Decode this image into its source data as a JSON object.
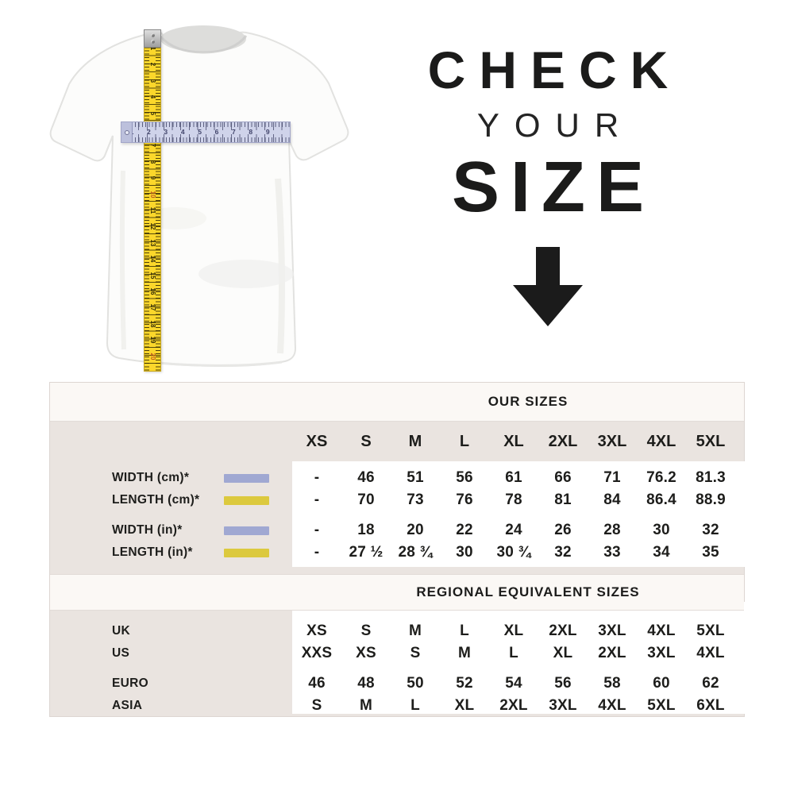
{
  "hero": {
    "line1": "CHECK",
    "line2": "YOUR",
    "line3": "SIZE",
    "arrow_icon": "down-arrow"
  },
  "shirt": {
    "image": "white t-shirt front view",
    "vertical_ruler": {
      "meaning": "length measurement",
      "color": "#fbd72b",
      "numbers": [
        1,
        2,
        3,
        4,
        5,
        6,
        7,
        8,
        9,
        10,
        11,
        12,
        13,
        14,
        15,
        16,
        17,
        18,
        19,
        20
      ]
    },
    "horizontal_ruler": {
      "meaning": "width measurement",
      "color": "#cfd3ea",
      "numbers": [
        1,
        2,
        3,
        4,
        5,
        6,
        7,
        8,
        9
      ]
    }
  },
  "colors": {
    "table_background": "#eae4e0",
    "band_background": "#fbf8f5",
    "panel_background": "#ffffff",
    "text": "#1d1d1b",
    "width_swatch": "#a0a8d2",
    "length_swatch": "#dcc93e"
  },
  "chart_data": [
    {
      "type": "table",
      "title": "OUR SIZES",
      "columns": [
        "XS",
        "S",
        "M",
        "L",
        "XL",
        "2XL",
        "3XL",
        "4XL",
        "5XL"
      ],
      "rows": [
        {
          "label": "WIDTH (cm)*",
          "swatch": "#a0a8d2",
          "values": [
            "-",
            "46",
            "51",
            "56",
            "61",
            "66",
            "71",
            "76.2",
            "81.3"
          ],
          "bold": [
            6,
            7,
            8
          ]
        },
        {
          "label": "LENGTH (cm)*",
          "swatch": "#dcc93e",
          "values": [
            "-",
            "70",
            "73",
            "76",
            "78",
            "81",
            "84",
            "86.4",
            "88.9"
          ],
          "bold": [
            6,
            7,
            8
          ]
        },
        {
          "gap": true
        },
        {
          "label": "WIDTH (in)*",
          "swatch": "#a0a8d2",
          "values": [
            "-",
            "18",
            "20",
            "22",
            "24",
            "26",
            "28",
            "30",
            "32"
          ],
          "bold": [
            6,
            7,
            8
          ]
        },
        {
          "label": "LENGTH (in)*",
          "swatch": "#dcc93e",
          "values": [
            "-",
            "27 ½",
            "28 ¾",
            "30",
            "30 ¾",
            "32",
            "33",
            "34",
            "35"
          ],
          "bold": [
            6,
            7,
            8
          ]
        }
      ]
    },
    {
      "type": "table",
      "title": "REGIONAL EQUIVALENT SIZES",
      "columns": [
        "XS",
        "S",
        "M",
        "L",
        "XL",
        "2XL",
        "3XL",
        "4XL",
        "5XL"
      ],
      "rows": [
        {
          "label": "UK",
          "values": [
            "XS",
            "S",
            "M",
            "L",
            "XL",
            "2XL",
            "3XL",
            "4XL",
            "5XL"
          ],
          "bold": [
            0,
            6,
            7,
            8
          ]
        },
        {
          "label": "US",
          "values": [
            "XXS",
            "XS",
            "S",
            "M",
            "L",
            "XL",
            "2XL",
            "3XL",
            "4XL"
          ],
          "bold": [
            0,
            6,
            7,
            8
          ]
        },
        {
          "gap": true
        },
        {
          "label": "EURO",
          "values": [
            "46",
            "48",
            "50",
            "52",
            "54",
            "56",
            "58",
            "60",
            "62"
          ],
          "bold": [
            0,
            6,
            7,
            8
          ]
        },
        {
          "label": "ASIA",
          "values": [
            "S",
            "M",
            "L",
            "XL",
            "2XL",
            "3XL",
            "4XL",
            "5XL",
            "6XL"
          ],
          "bold": [
            0,
            6,
            7,
            8
          ]
        }
      ]
    }
  ]
}
